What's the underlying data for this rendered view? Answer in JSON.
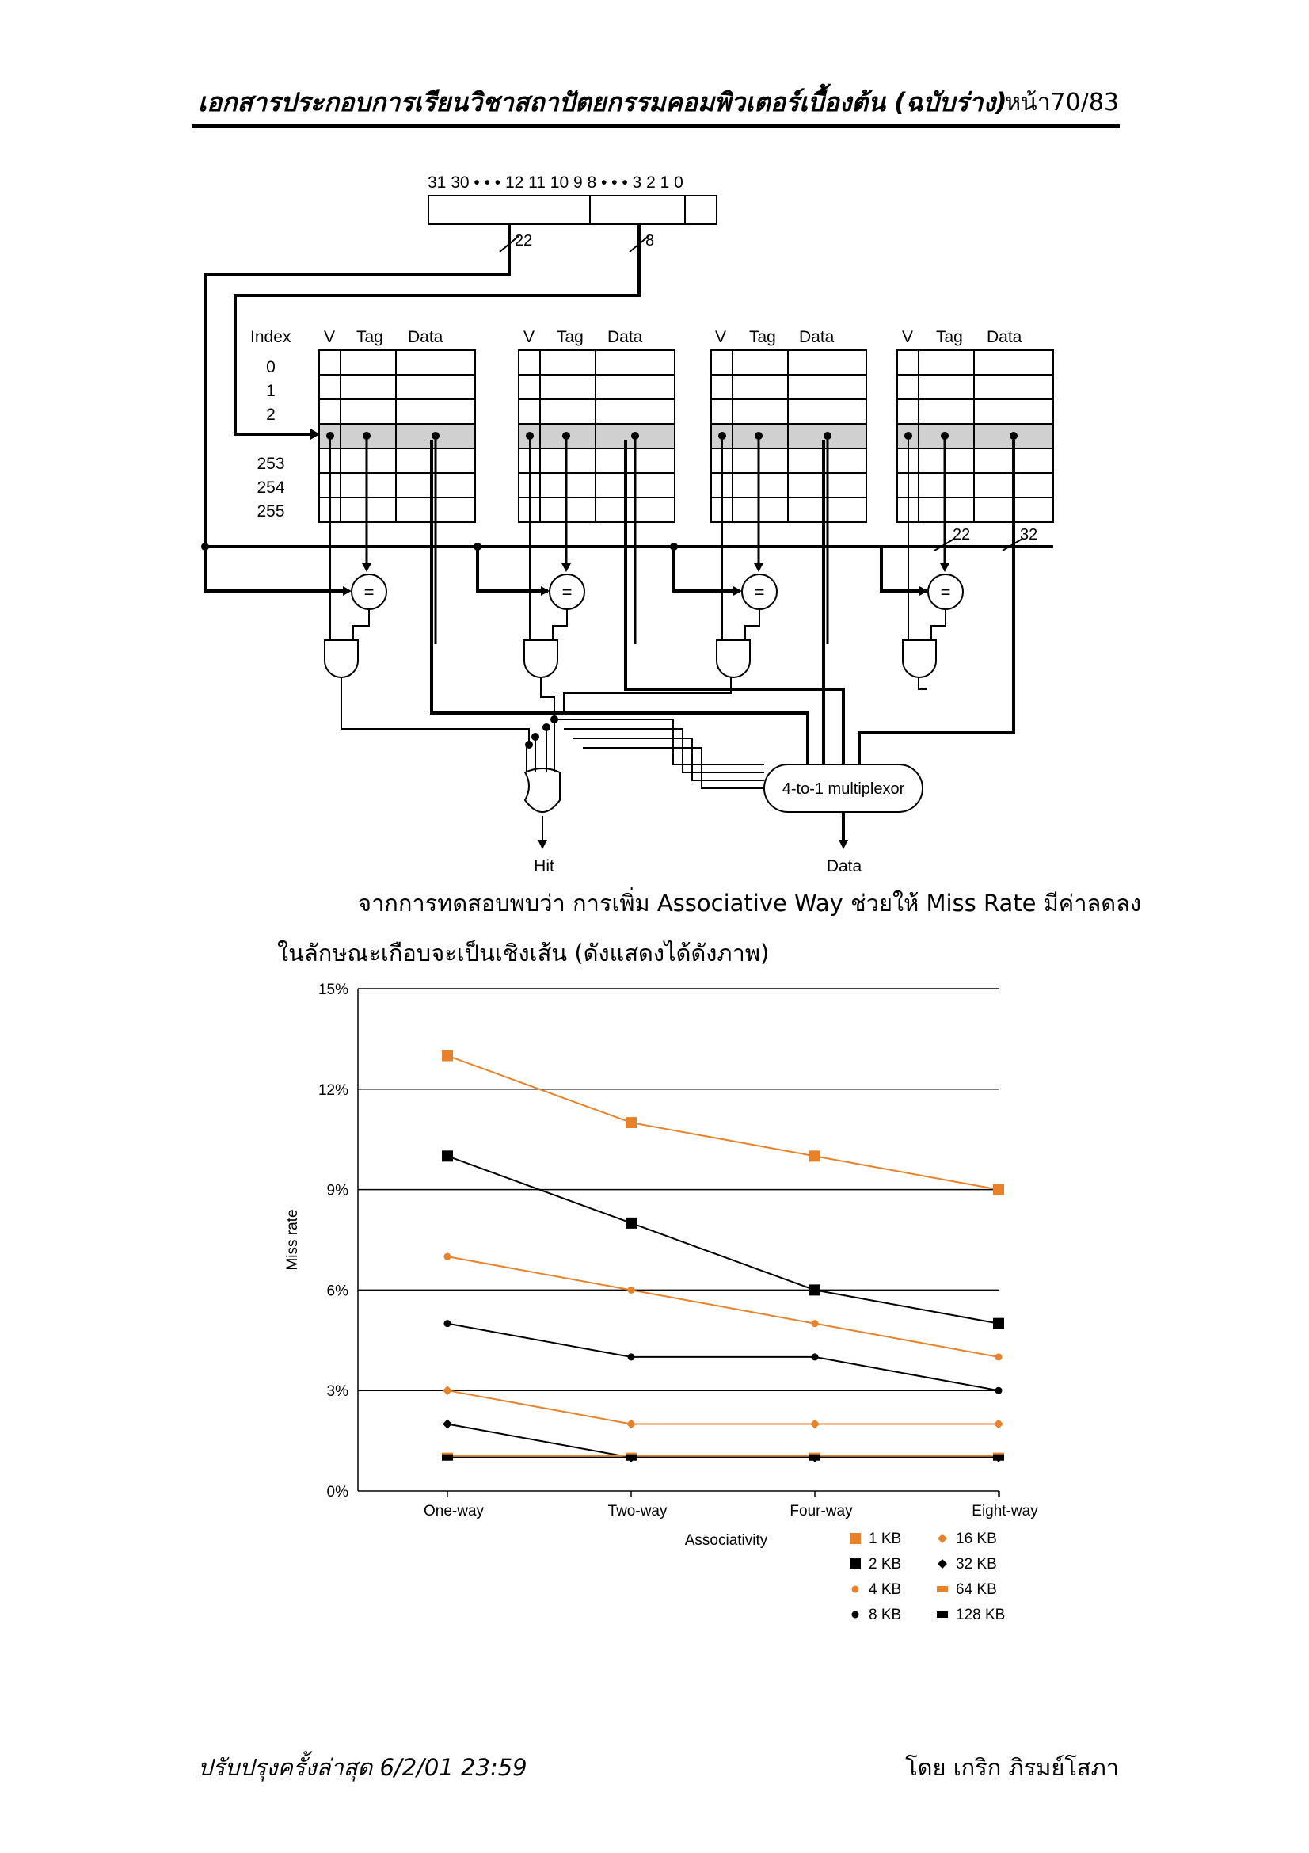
{
  "header": {
    "title": "เอกสารประกอบการเรียนวิชาสถาปัตยกรรมคอมพิวเตอร์เบื้องต้น (ฉบับร่าง)",
    "page": "หน้า70/83"
  },
  "diagram": {
    "address_bits": "31 30 • • • 12  11  10  9  8 • • • 3  2  1  0",
    "tag_width": "22",
    "index_width": "8",
    "index_header": "Index",
    "v_header": "V",
    "tag_header": "Tag",
    "data_header": "Data",
    "rows": [
      "0",
      "1",
      "2",
      "253",
      "254",
      "255"
    ],
    "comparator": "=",
    "out_tag_width": "22",
    "out_data_width": "32",
    "mux_label": "4-to-1 multiplexor",
    "hit_label": "Hit",
    "data_label": "Data"
  },
  "paragraph": {
    "line1": "จากการทดสอบพบว่า การเพิ่ม Associative Way ช่วยให้ Miss Rate มีค่าลดลง",
    "line2": "ในลักษณะเกือบจะเป็นเชิงเส้น (ดังแสดงได้ดังภาพ)"
  },
  "chart_data": {
    "type": "line",
    "categories": [
      "One-way",
      "Two-way",
      "Four-way",
      "Eight-way"
    ],
    "ylabel": "Miss rate",
    "xlabel": "Associativity",
    "ylim": [
      0,
      15
    ],
    "yticks": [
      "0%",
      "3%",
      "6%",
      "9%",
      "12%",
      "15%"
    ],
    "grid": true,
    "legend_position": "bottom-right",
    "series": [
      {
        "name": "1 KB",
        "color": "#e8822a",
        "marker": "square",
        "values": [
          13,
          11,
          10,
          9
        ]
      },
      {
        "name": "2 KB",
        "color": "#000000",
        "marker": "square",
        "values": [
          10,
          8,
          6,
          5
        ]
      },
      {
        "name": "4 KB",
        "color": "#e8822a",
        "marker": "circle",
        "values": [
          7,
          6,
          5,
          4
        ]
      },
      {
        "name": "8 KB",
        "color": "#000000",
        "marker": "circle",
        "values": [
          5,
          4,
          4,
          3
        ]
      },
      {
        "name": "16 KB",
        "color": "#e8822a",
        "marker": "diamond",
        "values": [
          3,
          2,
          2,
          2
        ]
      },
      {
        "name": "32 KB",
        "color": "#000000",
        "marker": "diamond",
        "values": [
          2,
          1,
          1,
          1
        ]
      },
      {
        "name": "64 KB",
        "color": "#e8822a",
        "marker": "bar",
        "values": [
          1.05,
          1.05,
          1.05,
          1.05
        ]
      },
      {
        "name": "128 KB",
        "color": "#000000",
        "marker": "bar",
        "values": [
          1.0,
          1.0,
          1.0,
          1.0
        ]
      }
    ]
  },
  "footer": {
    "left": "ปรับปรุงครั้งล่าสุด 6/2/01 23:59",
    "right": "โดย เกริก ภิรมย์โสภา"
  }
}
